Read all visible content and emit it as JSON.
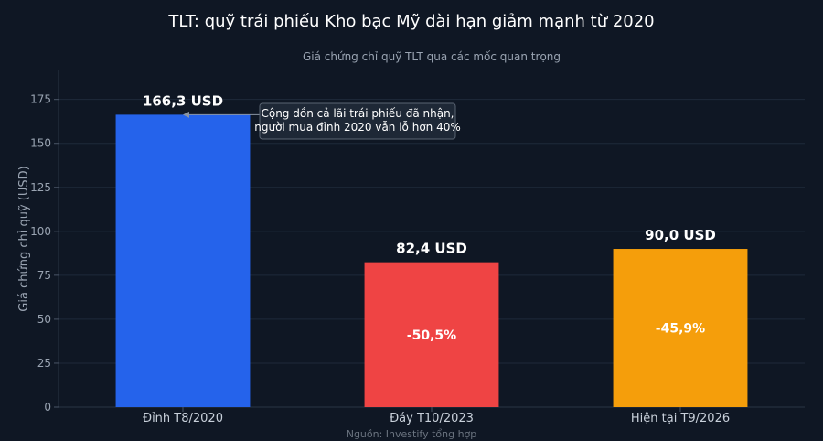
{
  "chart_data": {
    "type": "bar",
    "title": "TLT: quỹ trái phiếu Kho bạc Mỹ dài hạn giảm mạnh từ 2020",
    "subtitle": "Giá chứng chỉ quỹ TLT qua các mốc quan trọng",
    "xlabel": "",
    "ylabel": "Giá chứng chỉ quỹ (USD)",
    "ylim": [
      0,
      192
    ],
    "yticks": [
      0,
      25,
      50,
      75,
      100,
      125,
      150,
      175
    ],
    "grid": true,
    "categories": [
      "Đỉnh T8/2020",
      "Đáy T10/2023",
      "Hiện tại T9/2026"
    ],
    "values": [
      166.3,
      82.4,
      90.0
    ],
    "value_labels": [
      "166,3 USD",
      "82,4 USD",
      "90,0 USD"
    ],
    "change_labels": [
      "",
      "-50,5%",
      "-45,9%"
    ],
    "colors": [
      "#2563eb",
      "#ef4444",
      "#f59e0b"
    ],
    "annotation": {
      "lines": [
        "Cộng dồn cả lãi trái phiếu đã nhận,",
        "người mua đỉnh 2020 vẫn lỗ hơn 40%"
      ],
      "target_category": 0,
      "target_value": 166.3
    },
    "source": "Nguồn: Investify tổng hợp"
  }
}
